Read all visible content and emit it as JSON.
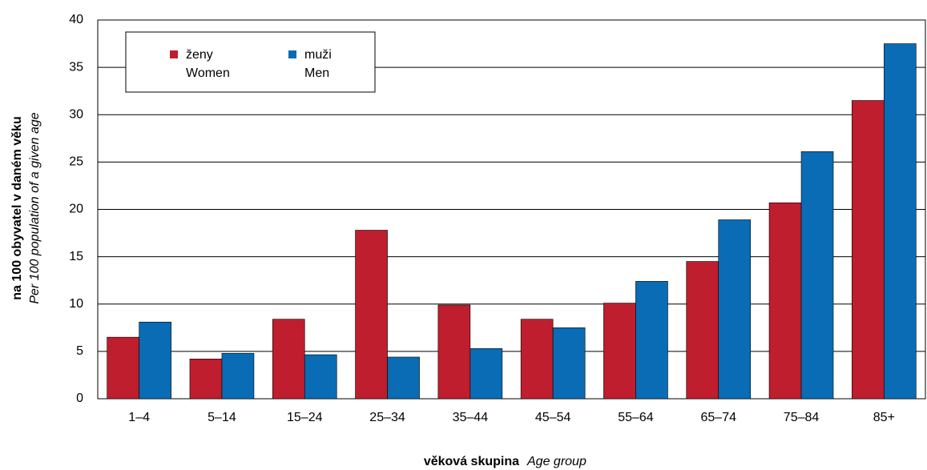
{
  "chart_data": {
    "type": "bar",
    "y_title": "na 100 obyvatel v daném věku",
    "y_title_en": "Per 100 population of a given age",
    "x_title": "věková skupina",
    "x_title_en": "Age group",
    "categories": [
      "1–4",
      "5–14",
      "15–24",
      "25–34",
      "35–44",
      "45–54",
      "55–64",
      "65–74",
      "75–84",
      "85+"
    ],
    "series": [
      {
        "name": "ženy",
        "name_en": "Women",
        "color": "#be1e2d",
        "values": [
          6.5,
          4.2,
          8.4,
          17.8,
          9.9,
          8.4,
          10.1,
          14.5,
          20.7,
          31.5
        ]
      },
      {
        "name": "muži",
        "name_en": "Men",
        "color": "#0a6cb4",
        "values": [
          8.1,
          4.8,
          4.65,
          4.4,
          5.3,
          7.5,
          12.4,
          18.9,
          26.1,
          37.5
        ]
      }
    ],
    "ylim": [
      0,
      40
    ],
    "yticks": [
      0,
      5,
      10,
      15,
      20,
      25,
      30,
      35,
      40
    ],
    "grid": true
  }
}
